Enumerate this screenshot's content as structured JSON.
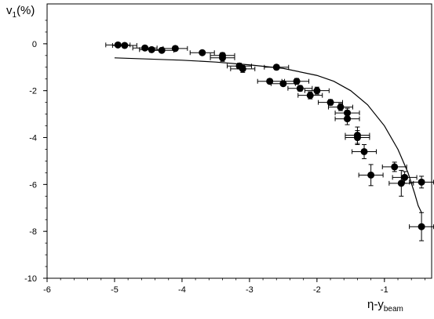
{
  "chart_data": {
    "type": "scatter",
    "xlabel_main": "η-y",
    "xlabel_sub": "beam",
    "ylabel_main": "v",
    "ylabel_sub": "1",
    "ylabel_suffix": "(%)",
    "xlim": [
      -6,
      -0.3
    ],
    "ylim": [
      -10,
      1.7
    ],
    "x_ticks": [
      -6,
      -5,
      -4,
      -3,
      -2,
      -1
    ],
    "y_ticks": [
      0,
      -2,
      -4,
      -6,
      -8,
      -10
    ],
    "grid": false,
    "series": [
      {
        "kind": "points_with_xy_errors",
        "x": [
          -4.95,
          -4.85,
          -4.55,
          -4.45,
          -4.3,
          -4.1,
          -3.7,
          -3.4,
          -3.4,
          -3.15,
          -3.1,
          -2.7,
          -2.6,
          -2.5,
          -2.3,
          -2.25,
          -2.1,
          -2.0,
          -1.8,
          -1.65,
          -1.55,
          -1.55,
          -1.4,
          -1.4,
          -1.3,
          -1.2,
          -0.85,
          -0.7,
          -0.75,
          -0.45,
          -0.45
        ],
        "y": [
          -0.05,
          -0.07,
          -0.18,
          -0.25,
          -0.28,
          -0.2,
          -0.38,
          -0.5,
          -0.6,
          -0.95,
          -1.07,
          -1.6,
          -1.0,
          -1.7,
          -1.6,
          -1.9,
          -2.2,
          -2.0,
          -2.5,
          -2.7,
          -2.95,
          -3.2,
          -3.9,
          -4.0,
          -4.6,
          -5.6,
          -5.25,
          -5.7,
          -5.95,
          -5.9,
          -7.8
        ],
        "xerr": [
          0.18,
          0.18,
          0.18,
          0.18,
          0.18,
          0.18,
          0.18,
          0.18,
          0.18,
          0.18,
          0.18,
          0.18,
          0.18,
          0.18,
          0.18,
          0.18,
          0.18,
          0.18,
          0.18,
          0.18,
          0.18,
          0.18,
          0.18,
          0.18,
          0.18,
          0.18,
          0.18,
          0.18,
          0.18,
          0.18,
          0.18
        ],
        "yerr": [
          0.05,
          0.05,
          0.05,
          0.05,
          0.05,
          0.05,
          0.08,
          0.12,
          0.15,
          0.12,
          0.15,
          0.1,
          0.1,
          0.1,
          0.12,
          0.12,
          0.15,
          0.15,
          0.12,
          0.15,
          0.2,
          0.25,
          0.35,
          0.3,
          0.3,
          0.45,
          0.2,
          0.25,
          0.55,
          0.25,
          0.6
        ]
      },
      {
        "kind": "curve",
        "x": [
          -5.0,
          -4.5,
          -4.0,
          -3.5,
          -3.0,
          -2.5,
          -2.0,
          -1.75,
          -1.5,
          -1.25,
          -1.0,
          -0.8,
          -0.65,
          -0.55,
          -0.5,
          -0.45
        ],
        "y": [
          -0.6,
          -0.65,
          -0.7,
          -0.78,
          -0.9,
          -1.05,
          -1.35,
          -1.6,
          -2.0,
          -2.6,
          -3.5,
          -4.5,
          -5.5,
          -6.4,
          -6.9,
          -7.2
        ]
      }
    ]
  }
}
